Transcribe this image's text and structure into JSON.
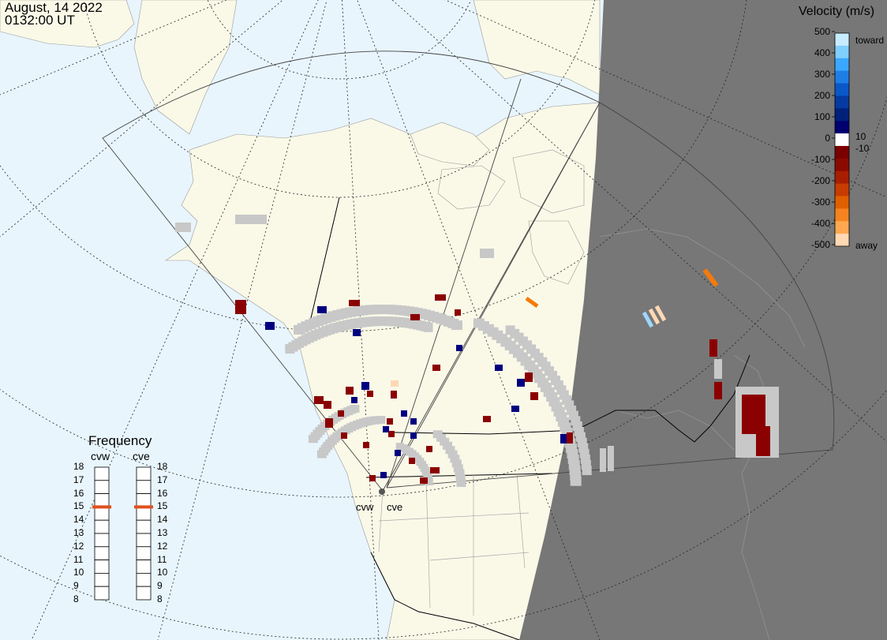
{
  "header": {
    "date": "August, 14 2022",
    "time": "0132:00 UT"
  },
  "colorbar": {
    "title": "Velocity (m/s)",
    "ticks": [
      "500",
      "400",
      "300",
      "200",
      "100",
      "0",
      "-100",
      "-200",
      "-300",
      "-400",
      "-500"
    ],
    "extra_ticks": [
      "10",
      "-10"
    ],
    "label_toward": "toward",
    "label_away": "away",
    "colors": [
      "#c8ecff",
      "#7fd0ff",
      "#3aa8ff",
      "#1d7fe6",
      "#0a58c8",
      "#053aa0",
      "#00207a",
      "#000070",
      "#ffffff",
      "#7a0000",
      "#8b0a00",
      "#a81e00",
      "#c83c00",
      "#e06000",
      "#f58420",
      "#ffa850",
      "#ffd8b4"
    ]
  },
  "frequency": {
    "title": "Frequency",
    "radars": [
      {
        "name": "cvw",
        "frequency_mhz": 15
      },
      {
        "name": "cve",
        "frequency_mhz": 15
      }
    ],
    "scale": [
      "18",
      "17",
      "16",
      "15",
      "14",
      "13",
      "12",
      "11",
      "10",
      "9",
      "8"
    ]
  },
  "sites": [
    {
      "label": "cvw"
    },
    {
      "label": "cve"
    }
  ],
  "colors": {
    "ocean": "#e8f5fd",
    "land": "#faf9e8",
    "night": "#7a7a7a",
    "ground_scatter": "#c8c8c8",
    "freq_marker": "#e0501e"
  }
}
